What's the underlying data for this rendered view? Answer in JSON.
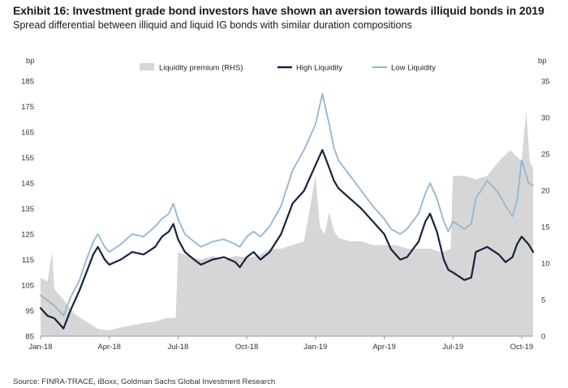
{
  "header": {
    "title": "Exhibit 16: Investment grade bond investors have shown an aversion towards illiquid bonds in 2019",
    "subtitle": "Spread differential between illiquid and liquid IG bonds with similar duration compositions"
  },
  "footer": {
    "source": "Source: FINRA-TRACE, iBoxx, Goldman Sachs Global Investment Research"
  },
  "colors": {
    "premium": "#d6d6d6",
    "high": "#14233f",
    "low": "#8fb7d4",
    "axis": "#999999"
  },
  "chart_data": {
    "type": "line",
    "title": "Exhibit 16: Investment grade bond investors have shown an aversion towards illiquid bonds in 2019",
    "subtitle": "Spread differential between illiquid and liquid IG bonds with similar duration compositions",
    "left_unit": "bp",
    "right_unit": "bp",
    "ylim_left": [
      85,
      185
    ],
    "yticks_left": [
      85,
      95,
      105,
      115,
      125,
      135,
      145,
      155,
      165,
      175,
      185
    ],
    "ylim_right": [
      0,
      35
    ],
    "yticks_right": [
      0,
      5,
      10,
      15,
      20,
      25,
      30,
      35
    ],
    "xlim": [
      0,
      21.5
    ],
    "xticks": [
      {
        "label": "Jan-18",
        "value": 0
      },
      {
        "label": "Apr-18",
        "value": 3
      },
      {
        "label": "Jul-18",
        "value": 6
      },
      {
        "label": "Oct-18",
        "value": 9
      },
      {
        "label": "Jan-19",
        "value": 12
      },
      {
        "label": "Apr-19",
        "value": 15
      },
      {
        "label": "Jul-19",
        "value": 18
      },
      {
        "label": "Oct-19",
        "value": 21
      }
    ],
    "legend": [
      "Liquidity premium (RHS)",
      "High Liquidity",
      "Low Liquidity"
    ],
    "series": [
      {
        "name": "Liquidity premium (RHS)",
        "kind": "area",
        "axis": "right",
        "points": [
          [
            0,
            8
          ],
          [
            0.3,
            7.5
          ],
          [
            0.5,
            11.5
          ],
          [
            0.6,
            6.5
          ],
          [
            1,
            5
          ],
          [
            1.5,
            3
          ],
          [
            2,
            2
          ],
          [
            2.5,
            1
          ],
          [
            3,
            0.8
          ],
          [
            3.5,
            1.2
          ],
          [
            4,
            1.5
          ],
          [
            4.5,
            1.8
          ],
          [
            5,
            2
          ],
          [
            5.5,
            2.5
          ],
          [
            5.9,
            2.5
          ],
          [
            6.0,
            11.5
          ],
          [
            6.5,
            11
          ],
          [
            7,
            10.5
          ],
          [
            7.5,
            11
          ],
          [
            8,
            10.5
          ],
          [
            8.5,
            11
          ],
          [
            9,
            10.8
          ],
          [
            9.5,
            11
          ],
          [
            10,
            12
          ],
          [
            10.5,
            12
          ],
          [
            11,
            12.5
          ],
          [
            11.5,
            13
          ],
          [
            12,
            22
          ],
          [
            12.2,
            15
          ],
          [
            12.4,
            14
          ],
          [
            12.6,
            17
          ],
          [
            12.8,
            14.5
          ],
          [
            13,
            13.5
          ],
          [
            13.5,
            13
          ],
          [
            14,
            13
          ],
          [
            14.5,
            12.5
          ],
          [
            15,
            12.5
          ],
          [
            15.5,
            12.5
          ],
          [
            16,
            12
          ],
          [
            16.5,
            12
          ],
          [
            17,
            12
          ],
          [
            17.5,
            11.5
          ],
          [
            17.9,
            12
          ],
          [
            18.0,
            22
          ],
          [
            18.5,
            22
          ],
          [
            19,
            21.5
          ],
          [
            19.5,
            22
          ],
          [
            20,
            24
          ],
          [
            20.5,
            25.5
          ],
          [
            21,
            24
          ],
          [
            21.2,
            31
          ],
          [
            21.35,
            24
          ],
          [
            21.5,
            23
          ]
        ]
      },
      {
        "name": "High Liquidity",
        "kind": "line",
        "axis": "left",
        "points": [
          [
            0,
            96
          ],
          [
            0.3,
            93
          ],
          [
            0.6,
            92
          ],
          [
            0.9,
            89
          ],
          [
            1.0,
            88
          ],
          [
            1.3,
            95
          ],
          [
            1.7,
            103
          ],
          [
            2.0,
            110
          ],
          [
            2.3,
            117
          ],
          [
            2.5,
            120
          ],
          [
            2.8,
            115
          ],
          [
            3.0,
            113
          ],
          [
            3.5,
            115
          ],
          [
            4,
            118
          ],
          [
            4.5,
            117
          ],
          [
            5,
            120
          ],
          [
            5.3,
            124
          ],
          [
            5.6,
            126
          ],
          [
            5.8,
            129
          ],
          [
            6,
            123
          ],
          [
            6.3,
            118
          ],
          [
            6.7,
            115
          ],
          [
            7,
            113
          ],
          [
            7.5,
            115
          ],
          [
            8,
            116
          ],
          [
            8.5,
            114
          ],
          [
            8.7,
            112
          ],
          [
            9,
            116
          ],
          [
            9.3,
            118
          ],
          [
            9.6,
            115
          ],
          [
            10,
            118
          ],
          [
            10.5,
            125
          ],
          [
            11,
            137
          ],
          [
            11.5,
            142
          ],
          [
            12,
            152
          ],
          [
            12.3,
            158
          ],
          [
            12.6,
            151
          ],
          [
            12.8,
            146
          ],
          [
            13,
            143
          ],
          [
            13.5,
            139
          ],
          [
            14,
            135
          ],
          [
            14.5,
            130
          ],
          [
            15,
            125
          ],
          [
            15.3,
            119
          ],
          [
            15.7,
            115
          ],
          [
            16.0,
            116
          ],
          [
            16.5,
            122
          ],
          [
            16.8,
            130
          ],
          [
            17.0,
            133
          ],
          [
            17.3,
            126
          ],
          [
            17.6,
            115
          ],
          [
            17.8,
            111
          ],
          [
            18,
            110
          ],
          [
            18.5,
            107
          ],
          [
            18.8,
            108
          ],
          [
            19,
            118
          ],
          [
            19.5,
            120
          ],
          [
            20,
            117
          ],
          [
            20.3,
            114
          ],
          [
            20.6,
            116
          ],
          [
            20.8,
            121
          ],
          [
            21.0,
            124
          ],
          [
            21.3,
            121
          ],
          [
            21.5,
            118
          ]
        ]
      },
      {
        "name": "Low Liquidity",
        "kind": "line",
        "axis": "left",
        "points": [
          [
            0,
            101
          ],
          [
            0.3,
            99
          ],
          [
            0.6,
            97
          ],
          [
            0.9,
            94
          ],
          [
            1.0,
            93
          ],
          [
            1.3,
            100
          ],
          [
            1.7,
            107
          ],
          [
            2.0,
            115
          ],
          [
            2.3,
            122
          ],
          [
            2.5,
            125
          ],
          [
            2.8,
            120
          ],
          [
            3.0,
            118
          ],
          [
            3.5,
            121
          ],
          [
            4,
            125
          ],
          [
            4.5,
            124
          ],
          [
            5,
            128
          ],
          [
            5.3,
            131
          ],
          [
            5.6,
            133
          ],
          [
            5.8,
            137
          ],
          [
            6,
            131
          ],
          [
            6.3,
            125
          ],
          [
            6.7,
            122
          ],
          [
            7,
            120
          ],
          [
            7.5,
            122
          ],
          [
            8,
            123
          ],
          [
            8.5,
            121
          ],
          [
            8.7,
            120
          ],
          [
            9,
            124
          ],
          [
            9.3,
            126
          ],
          [
            9.6,
            124
          ],
          [
            10,
            128
          ],
          [
            10.5,
            136
          ],
          [
            11,
            150
          ],
          [
            11.5,
            158
          ],
          [
            12,
            168
          ],
          [
            12.3,
            180
          ],
          [
            12.6,
            168
          ],
          [
            12.8,
            159
          ],
          [
            13,
            154
          ],
          [
            13.5,
            148
          ],
          [
            14,
            142
          ],
          [
            14.5,
            136
          ],
          [
            15,
            131
          ],
          [
            15.3,
            127
          ],
          [
            15.7,
            125
          ],
          [
            16.0,
            127
          ],
          [
            16.5,
            133
          ],
          [
            16.8,
            141
          ],
          [
            17.0,
            145
          ],
          [
            17.3,
            139
          ],
          [
            17.6,
            130
          ],
          [
            17.8,
            126
          ],
          [
            18,
            130
          ],
          [
            18.5,
            127
          ],
          [
            18.8,
            129
          ],
          [
            19,
            139
          ],
          [
            19.5,
            146
          ],
          [
            20,
            141
          ],
          [
            20.3,
            136
          ],
          [
            20.6,
            132
          ],
          [
            20.8,
            138
          ],
          [
            21.0,
            154
          ],
          [
            21.3,
            145
          ],
          [
            21.5,
            144
          ]
        ]
      }
    ]
  }
}
